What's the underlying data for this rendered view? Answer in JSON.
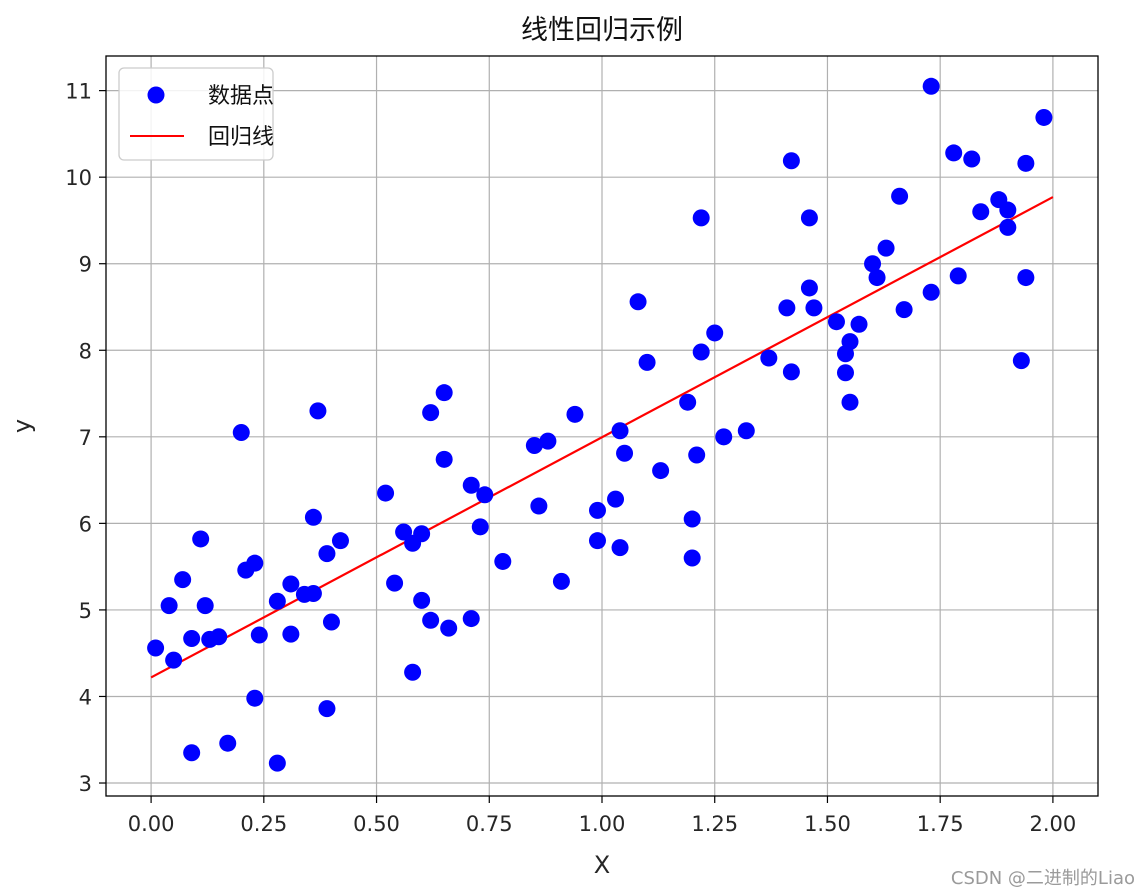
{
  "chart_data": {
    "type": "scatter",
    "title": "线性回归示例",
    "xlabel": "X",
    "ylabel": "y",
    "xlim": [
      -0.1,
      2.1
    ],
    "ylim": [
      2.85,
      11.4
    ],
    "xticks": [
      "0.00",
      "0.25",
      "0.50",
      "0.75",
      "1.00",
      "1.25",
      "1.50",
      "1.75",
      "2.00"
    ],
    "xtick_values": [
      0,
      0.25,
      0.5,
      0.75,
      1.0,
      1.25,
      1.5,
      1.75,
      2.0
    ],
    "yticks": [
      "3",
      "4",
      "5",
      "6",
      "7",
      "8",
      "9",
      "10",
      "11"
    ],
    "ytick_values": [
      3,
      4,
      5,
      6,
      7,
      8,
      9,
      10,
      11
    ],
    "grid": true,
    "legend": {
      "position": "top-left",
      "entries": [
        "数据点",
        "回归线"
      ]
    },
    "series": [
      {
        "name": "数据点",
        "kind": "scatter",
        "color": "#0000ff",
        "points": [
          [
            0.01,
            4.56
          ],
          [
            0.04,
            5.05
          ],
          [
            0.05,
            4.42
          ],
          [
            0.07,
            5.35
          ],
          [
            0.09,
            3.35
          ],
          [
            0.09,
            4.67
          ],
          [
            0.11,
            5.82
          ],
          [
            0.12,
            5.05
          ],
          [
            0.13,
            4.66
          ],
          [
            0.15,
            4.69
          ],
          [
            0.17,
            3.46
          ],
          [
            0.2,
            7.05
          ],
          [
            0.21,
            5.46
          ],
          [
            0.23,
            5.54
          ],
          [
            0.23,
            3.98
          ],
          [
            0.24,
            4.71
          ],
          [
            0.28,
            5.1
          ],
          [
            0.28,
            3.23
          ],
          [
            0.31,
            5.3
          ],
          [
            0.31,
            4.72
          ],
          [
            0.34,
            5.18
          ],
          [
            0.36,
            5.19
          ],
          [
            0.36,
            6.07
          ],
          [
            0.37,
            7.3
          ],
          [
            0.39,
            5.65
          ],
          [
            0.39,
            3.86
          ],
          [
            0.4,
            4.86
          ],
          [
            0.42,
            5.8
          ],
          [
            0.52,
            6.35
          ],
          [
            0.54,
            5.31
          ],
          [
            0.56,
            5.9
          ],
          [
            0.58,
            4.28
          ],
          [
            0.58,
            5.77
          ],
          [
            0.6,
            5.88
          ],
          [
            0.6,
            5.11
          ],
          [
            0.62,
            7.28
          ],
          [
            0.62,
            4.88
          ],
          [
            0.65,
            7.51
          ],
          [
            0.65,
            6.74
          ],
          [
            0.66,
            4.79
          ],
          [
            0.71,
            4.9
          ],
          [
            0.71,
            6.44
          ],
          [
            0.73,
            5.96
          ],
          [
            0.74,
            6.33
          ],
          [
            0.78,
            5.56
          ],
          [
            0.85,
            6.9
          ],
          [
            0.86,
            6.2
          ],
          [
            0.88,
            6.95
          ],
          [
            0.91,
            5.33
          ],
          [
            0.94,
            7.26
          ],
          [
            0.99,
            6.15
          ],
          [
            0.99,
            5.8
          ],
          [
            1.03,
            6.28
          ],
          [
            1.04,
            5.72
          ],
          [
            1.04,
            7.07
          ],
          [
            1.05,
            6.81
          ],
          [
            1.08,
            8.56
          ],
          [
            1.1,
            7.86
          ],
          [
            1.13,
            6.61
          ],
          [
            1.19,
            7.4
          ],
          [
            1.2,
            6.05
          ],
          [
            1.2,
            5.6
          ],
          [
            1.21,
            6.79
          ],
          [
            1.22,
            9.53
          ],
          [
            1.22,
            7.98
          ],
          [
            1.25,
            8.2
          ],
          [
            1.27,
            7.0
          ],
          [
            1.32,
            7.07
          ],
          [
            1.37,
            7.91
          ],
          [
            1.41,
            8.49
          ],
          [
            1.42,
            7.75
          ],
          [
            1.42,
            10.19
          ],
          [
            1.46,
            8.72
          ],
          [
            1.46,
            9.53
          ],
          [
            1.47,
            8.49
          ],
          [
            1.52,
            8.33
          ],
          [
            1.54,
            7.96
          ],
          [
            1.54,
            7.74
          ],
          [
            1.55,
            8.1
          ],
          [
            1.55,
            7.4
          ],
          [
            1.57,
            8.3
          ],
          [
            1.6,
            9.0
          ],
          [
            1.61,
            8.84
          ],
          [
            1.63,
            9.18
          ],
          [
            1.66,
            9.78
          ],
          [
            1.67,
            8.47
          ],
          [
            1.73,
            11.05
          ],
          [
            1.73,
            8.67
          ],
          [
            1.78,
            10.28
          ],
          [
            1.79,
            8.86
          ],
          [
            1.82,
            10.21
          ],
          [
            1.84,
            9.6
          ],
          [
            1.88,
            9.74
          ],
          [
            1.9,
            9.62
          ],
          [
            1.9,
            9.42
          ],
          [
            1.93,
            7.88
          ],
          [
            1.94,
            10.16
          ],
          [
            1.94,
            8.84
          ],
          [
            1.98,
            10.69
          ]
        ]
      },
      {
        "name": "回归线",
        "kind": "line",
        "color": "#ff0000",
        "points": [
          [
            0.0,
            4.22
          ],
          [
            2.0,
            9.77
          ]
        ]
      }
    ]
  },
  "watermark": "CSDN @二进制的Liao"
}
